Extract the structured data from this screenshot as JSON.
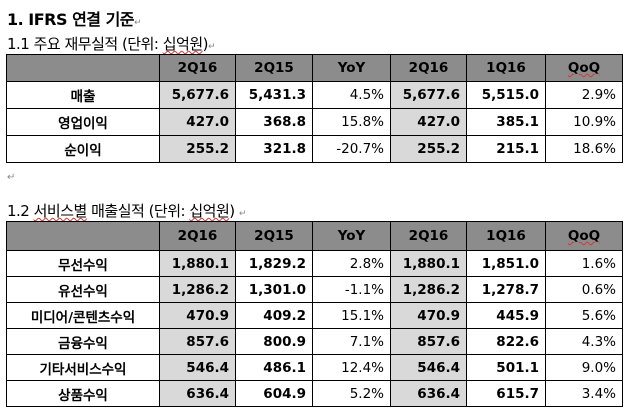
{
  "heading": "1. IFRS 연결 기준",
  "section1": {
    "title_prefix": "1.1 주요 재무실적 (단위: ",
    "title_unit": "십억원",
    "title_suffix": ")",
    "headers": [
      "",
      "2Q16",
      "2Q15",
      "YoY",
      "2Q16",
      "1Q16",
      "QoQ"
    ],
    "rows": [
      [
        "매출",
        "5,677.6",
        "5,431.3",
        "4.5%",
        "5,677.6",
        "5,515.0",
        "2.9%"
      ],
      [
        "영업이익",
        "427.0",
        "368.8",
        "15.8%",
        "427.0",
        "385.1",
        "10.9%"
      ],
      [
        "순이익",
        "255.2",
        "321.8",
        "-20.7%",
        "255.2",
        "215.1",
        "18.6%"
      ]
    ]
  },
  "section2": {
    "title_prefix": "1.2 ",
    "title_word": "서비스별",
    "title_mid": " 매출실적 (단위: ",
    "title_unit": "십억원",
    "title_suffix": ")",
    "headers": [
      "",
      "2Q16",
      "2Q15",
      "YoY",
      "2Q16",
      "1Q16",
      "QoQ"
    ],
    "rows": [
      [
        "무선수익",
        "1,880.1",
        "1,829.2",
        "2.8%",
        "1,880.1",
        "1,851.0",
        "1.6%"
      ],
      [
        "유선수익",
        "1,286.2",
        "1,301.0",
        "-1.1%",
        "1,286.2",
        "1,278.7",
        "0.6%"
      ],
      [
        "미디어/콘텐츠수익",
        "470.9",
        "409.2",
        "15.1%",
        "470.9",
        "445.9",
        "5.6%"
      ],
      [
        "금융수익",
        "857.6",
        "800.9",
        "7.1%",
        "857.6",
        "822.6",
        "4.3%"
      ],
      [
        "기타서비스수익",
        "546.4",
        "486.1",
        "12.4%",
        "546.4",
        "501.1",
        "9.0%"
      ],
      [
        "상품수익",
        "636.4",
        "604.9",
        "5.2%",
        "636.4",
        "615.7",
        "3.4%"
      ]
    ]
  },
  "colors": {
    "header_bg": "#8c8c8c",
    "shaded_bg": "#d9d9d9"
  }
}
